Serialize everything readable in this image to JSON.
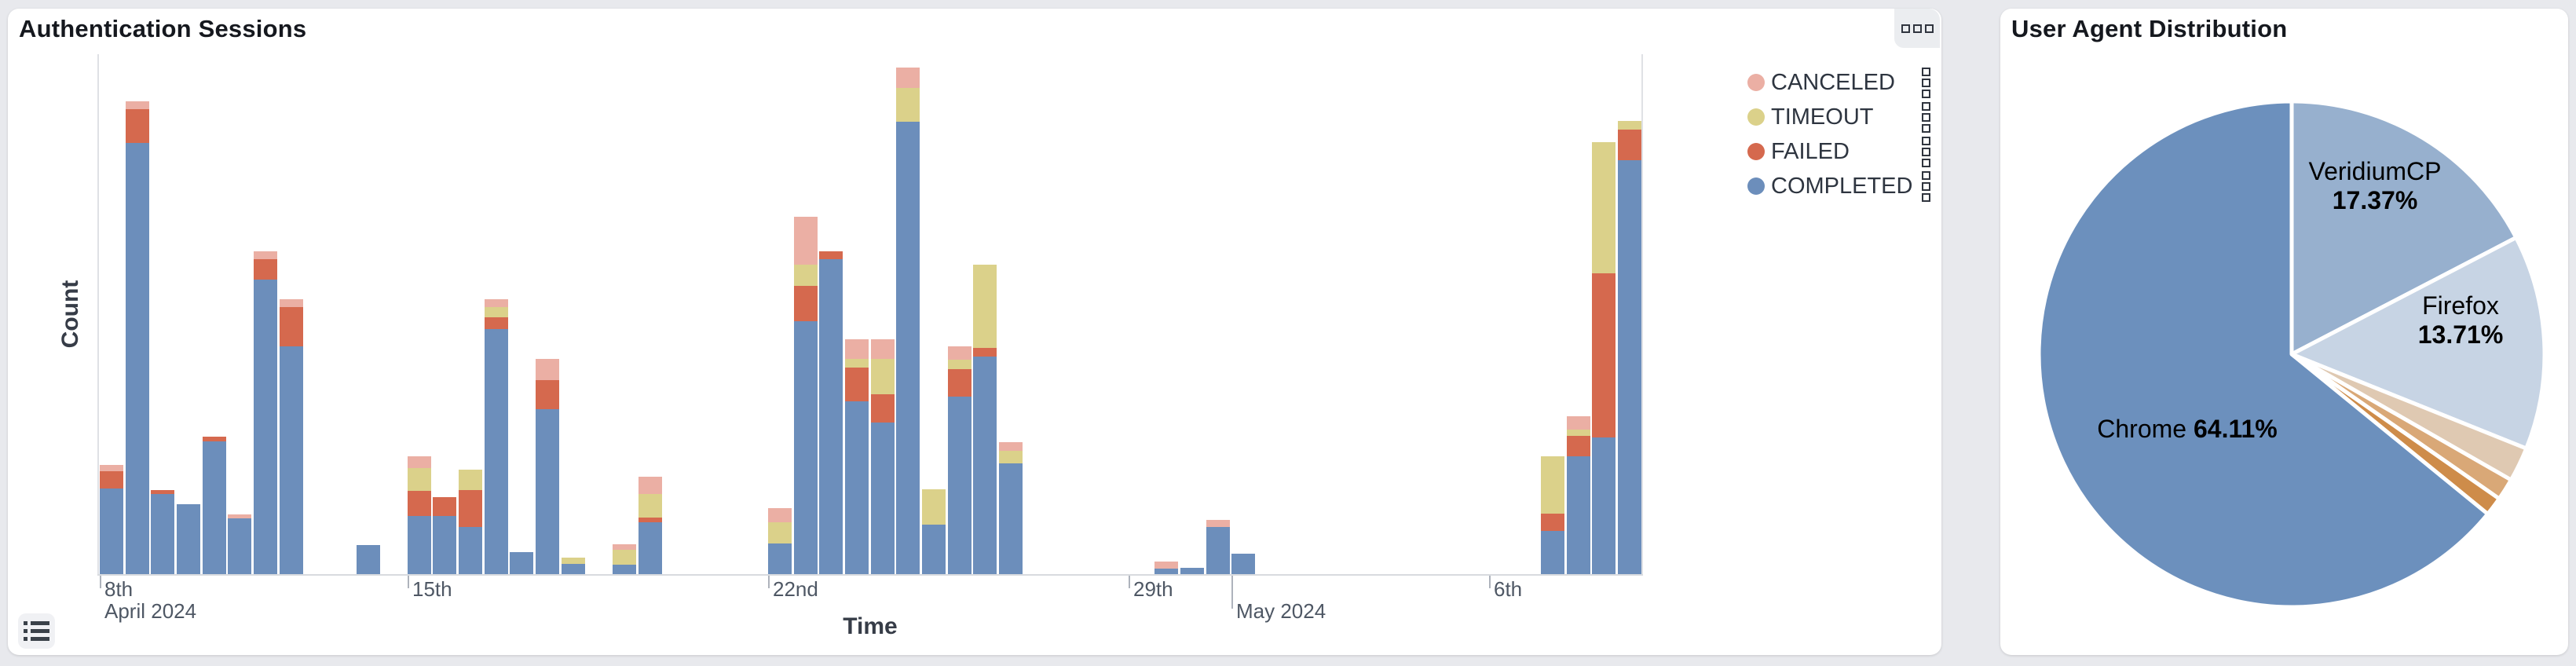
{
  "left_panel": {
    "title": "Authentication Sessions",
    "y_axis_label": "Count",
    "x_axis_label": "Time",
    "legend": [
      {
        "label": "CANCELED",
        "color": "#EBAFA4"
      },
      {
        "label": "TIMEOUT",
        "color": "#DBD18A"
      },
      {
        "label": "FAILED",
        "color": "#D5694E"
      },
      {
        "label": "COMPLETED",
        "color": "#6C8EBB"
      }
    ],
    "icons": {
      "corner_button": "grid-squares-icon",
      "table_button": "list-icon",
      "legend_row": "drag-handle-icon"
    }
  },
  "right_panel": {
    "title": "User Agent Distribution"
  },
  "chart_data": [
    {
      "type": "bar",
      "stacked": true,
      "title": "Authentication Sessions",
      "xlabel": "Time",
      "ylabel": "Count",
      "value_units": "relative (no y tick labels shown; heights proportional to count)",
      "stack_order_bottom_to_top": [
        "COMPLETED",
        "FAILED",
        "TIMEOUT",
        "CANCELED"
      ],
      "series_colors": {
        "completed": "#6C8EBB",
        "failed": "#D5694E",
        "timeout": "#DBD18A",
        "canceled": "#EBAFA4"
      },
      "x_ticks": [
        {
          "label": "8th",
          "x": 0,
          "row": 1,
          "tick": "short"
        },
        {
          "label": "April 2024",
          "x": 0,
          "row": 2,
          "tick": "none"
        },
        {
          "label": "15th",
          "x": 392,
          "row": 1,
          "tick": "short"
        },
        {
          "label": "22nd",
          "x": 851,
          "row": 1,
          "tick": "short"
        },
        {
          "label": "29th",
          "x": 1310,
          "row": 1,
          "tick": "short"
        },
        {
          "label": "May 2024",
          "x": 1441,
          "row": 2,
          "tick": "long"
        },
        {
          "label": "6th",
          "x": 1769,
          "row": 1,
          "tick": "short"
        }
      ],
      "bars": [
        {
          "x": 0,
          "completed": 109,
          "failed": 22,
          "timeout": 0,
          "canceled": 8
        },
        {
          "x": 33,
          "completed": 549,
          "failed": 43,
          "timeout": 0,
          "canceled": 10
        },
        {
          "x": 65,
          "completed": 102,
          "failed": 5,
          "timeout": 0,
          "canceled": 0
        },
        {
          "x": 98,
          "completed": 89,
          "failed": 0,
          "timeout": 0,
          "canceled": 0
        },
        {
          "x": 131,
          "completed": 169,
          "failed": 6,
          "timeout": 0,
          "canceled": 0
        },
        {
          "x": 163,
          "completed": 71,
          "failed": 0,
          "timeout": 0,
          "canceled": 5
        },
        {
          "x": 196,
          "completed": 375,
          "failed": 26,
          "timeout": 0,
          "canceled": 10
        },
        {
          "x": 229,
          "completed": 290,
          "failed": 50,
          "timeout": 0,
          "canceled": 10
        },
        {
          "x": 327,
          "completed": 37,
          "failed": 0,
          "timeout": 0,
          "canceled": 0
        },
        {
          "x": 392,
          "completed": 74,
          "failed": 32,
          "timeout": 29,
          "canceled": 15
        },
        {
          "x": 424,
          "completed": 74,
          "failed": 24,
          "timeout": 0,
          "canceled": 0
        },
        {
          "x": 457,
          "completed": 60,
          "failed": 47,
          "timeout": 26,
          "canceled": 0
        },
        {
          "x": 490,
          "completed": 312,
          "failed": 15,
          "timeout": 13,
          "canceled": 10
        },
        {
          "x": 522,
          "completed": 28,
          "failed": 0,
          "timeout": 0,
          "canceled": 0
        },
        {
          "x": 555,
          "completed": 210,
          "failed": 37,
          "timeout": 0,
          "canceled": 27
        },
        {
          "x": 588,
          "completed": 13,
          "failed": 0,
          "timeout": 8,
          "canceled": 0
        },
        {
          "x": 653,
          "completed": 12,
          "failed": 0,
          "timeout": 19,
          "canceled": 7
        },
        {
          "x": 686,
          "completed": 66,
          "failed": 6,
          "timeout": 30,
          "canceled": 22
        },
        {
          "x": 851,
          "completed": 39,
          "failed": 0,
          "timeout": 27,
          "canceled": 18
        },
        {
          "x": 884,
          "completed": 322,
          "failed": 45,
          "timeout": 27,
          "canceled": 61
        },
        {
          "x": 916,
          "completed": 401,
          "failed": 10,
          "timeout": 0,
          "canceled": 0
        },
        {
          "x": 949,
          "completed": 220,
          "failed": 43,
          "timeout": 11,
          "canceled": 25
        },
        {
          "x": 982,
          "completed": 193,
          "failed": 36,
          "timeout": 45,
          "canceled": 25
        },
        {
          "x": 1014,
          "completed": 576,
          "failed": 0,
          "timeout": 43,
          "canceled": 26
        },
        {
          "x": 1047,
          "completed": 63,
          "failed": 0,
          "timeout": 45,
          "canceled": 0
        },
        {
          "x": 1080,
          "completed": 226,
          "failed": 35,
          "timeout": 12,
          "canceled": 17
        },
        {
          "x": 1112,
          "completed": 277,
          "failed": 11,
          "timeout": 106,
          "canceled": 0
        },
        {
          "x": 1145,
          "completed": 141,
          "failed": 0,
          "timeout": 16,
          "canceled": 11
        },
        {
          "x": 1343,
          "completed": 7,
          "failed": 0,
          "timeout": 0,
          "canceled": 9
        },
        {
          "x": 1376,
          "completed": 8,
          "failed": 0,
          "timeout": 0,
          "canceled": 0
        },
        {
          "x": 1409,
          "completed": 60,
          "failed": 0,
          "timeout": 0,
          "canceled": 9
        },
        {
          "x": 1441,
          "completed": 26,
          "failed": 0,
          "timeout": 0,
          "canceled": 0
        },
        {
          "x": 1835,
          "completed": 55,
          "failed": 22,
          "timeout": 73,
          "canceled": 0
        },
        {
          "x": 1868,
          "completed": 150,
          "failed": 26,
          "timeout": 8,
          "canceled": 17
        },
        {
          "x": 1900,
          "completed": 174,
          "failed": 209,
          "timeout": 167,
          "canceled": 0
        },
        {
          "x": 1933,
          "completed": 527,
          "failed": 39,
          "timeout": 11,
          "canceled": 0
        }
      ]
    },
    {
      "type": "pie",
      "title": "User Agent Distribution",
      "start_angle_deg": 0,
      "direction": "clockwise-from-top",
      "slices": [
        {
          "name": "VeridiumCP",
          "value": 17.37,
          "pct_label": "17.37%",
          "color": "#97B0CE",
          "labeled": true
        },
        {
          "name": "Firefox",
          "value": 13.71,
          "pct_label": "13.71%",
          "color": "#C7D4E4",
          "labeled": true
        },
        {
          "name": "",
          "value": 2.2,
          "pct_label": "",
          "color": "#DFC9B2",
          "labeled": false
        },
        {
          "name": "",
          "value": 1.4,
          "pct_label": "",
          "color": "#D9A877",
          "labeled": false
        },
        {
          "name": "",
          "value": 1.2,
          "pct_label": "",
          "color": "#CE8C4A",
          "labeled": false
        },
        {
          "name": "Chrome",
          "value": 64.11,
          "pct_label": "64.11%",
          "color": "#6C90BD",
          "labeled": true
        }
      ]
    }
  ]
}
